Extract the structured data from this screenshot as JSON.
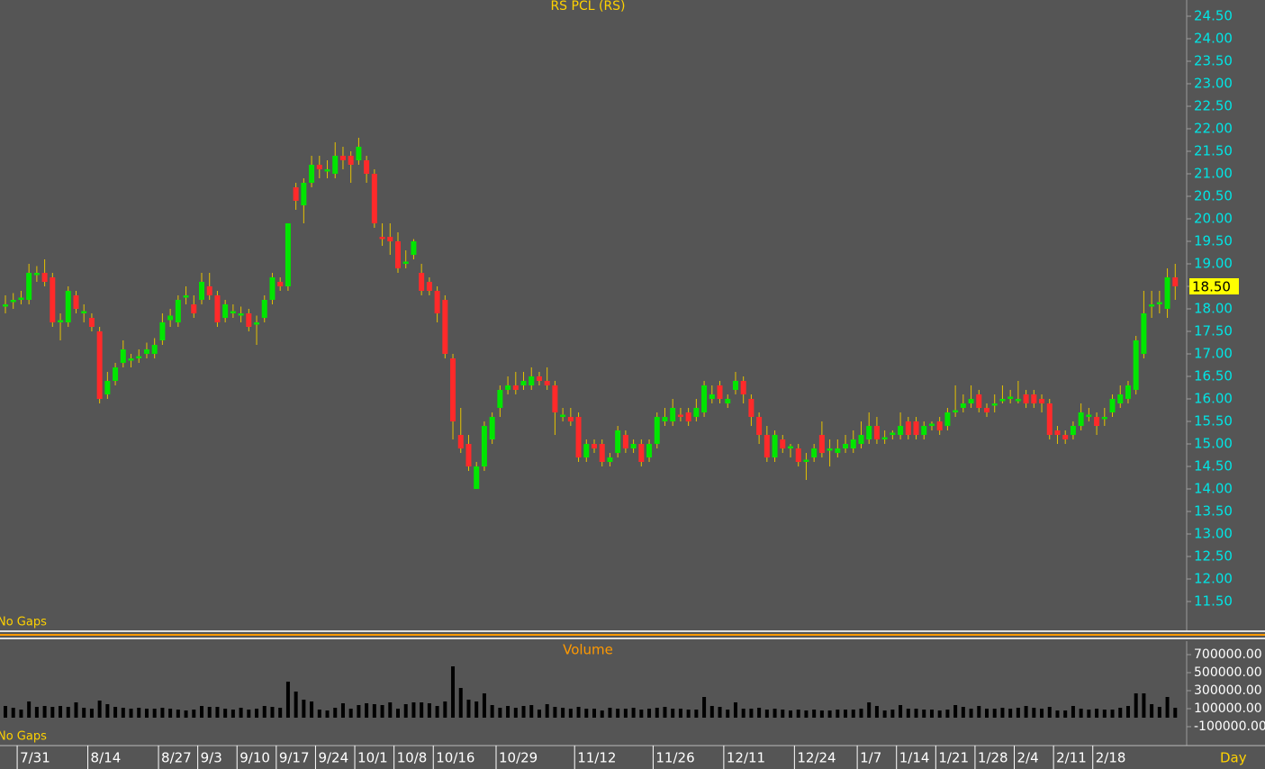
{
  "chart_data": [
    {
      "type": "candlestick",
      "title": "RS PCL (RS)",
      "note": "No Gaps",
      "up_color": "#00e600",
      "down_color": "#ff2a2a",
      "wick_color": "#e6c200",
      "open": [
        18.05,
        18.15,
        18.2,
        18.2,
        18.75,
        18.8,
        18.7,
        17.7,
        17.7,
        18.3,
        17.9,
        17.8,
        17.5,
        16.1,
        16.4,
        16.8,
        16.85,
        16.9,
        17.0,
        17.0,
        17.3,
        17.75,
        17.7,
        18.25,
        18.1,
        18.2,
        18.5,
        18.3,
        17.8,
        17.9,
        17.85,
        17.9,
        17.65,
        17.8,
        18.2,
        18.6,
        18.5,
        20.7,
        20.3,
        20.8,
        21.2,
        21.05,
        21.0,
        21.4,
        21.4,
        21.3,
        21.3,
        21.0,
        19.6,
        19.6,
        19.5,
        19.0,
        19.2,
        18.8,
        18.6,
        18.4,
        18.2,
        16.9,
        15.2,
        15.0,
        14.0,
        14.5,
        15.1,
        15.8,
        16.2,
        16.3,
        16.3,
        16.3,
        16.5,
        16.4,
        16.3,
        15.6,
        15.6,
        15.6,
        14.7,
        15.0,
        15.0,
        14.6,
        14.8,
        15.2,
        14.9,
        15.0,
        14.7,
        15.0,
        15.5,
        15.5,
        15.65,
        15.7,
        15.6,
        15.7,
        16.0,
        16.3,
        15.9,
        16.2,
        16.4,
        16.0,
        15.6,
        15.2,
        14.7,
        15.1,
        14.9,
        14.9,
        14.6,
        14.7,
        15.2,
        14.85,
        14.8,
        14.9,
        14.9,
        15.0,
        15.1,
        15.4,
        15.1,
        15.2,
        15.2,
        15.5,
        15.5,
        15.2,
        15.4,
        15.5,
        15.4,
        15.7,
        15.8,
        15.9,
        16.1,
        15.8,
        15.85,
        15.95,
        16.0,
        15.95,
        16.1,
        16.1,
        16.0,
        15.9,
        15.3,
        15.2,
        15.2,
        15.4,
        15.6,
        15.6,
        15.55,
        15.7,
        15.9,
        16.0,
        16.2,
        17.0,
        18.05,
        18.1,
        18.0,
        18.7
      ],
      "high": [
        18.3,
        18.35,
        18.4,
        19.0,
        18.95,
        19.1,
        18.8,
        17.9,
        18.5,
        18.4,
        18.1,
        17.9,
        17.6,
        16.6,
        16.8,
        17.3,
        17.0,
        17.1,
        17.25,
        17.35,
        17.9,
        18.0,
        18.3,
        18.5,
        18.3,
        18.8,
        18.8,
        18.4,
        18.2,
        18.1,
        18.05,
        18.0,
        17.85,
        18.3,
        18.8,
        18.7,
        19.9,
        20.8,
        20.9,
        21.4,
        21.4,
        21.3,
        21.7,
        21.6,
        21.5,
        21.8,
        21.4,
        21.1,
        19.9,
        19.9,
        19.7,
        19.3,
        19.55,
        19.0,
        18.7,
        18.5,
        18.3,
        17.0,
        15.8,
        15.2,
        14.6,
        15.5,
        15.7,
        16.3,
        16.5,
        16.6,
        16.6,
        16.7,
        16.6,
        16.7,
        16.4,
        15.8,
        15.8,
        15.7,
        15.1,
        15.1,
        15.1,
        14.8,
        15.4,
        15.3,
        15.1,
        15.1,
        15.1,
        15.7,
        15.8,
        16.0,
        15.8,
        15.8,
        16.0,
        16.4,
        16.3,
        16.4,
        16.1,
        16.6,
        16.5,
        16.1,
        15.7,
        15.4,
        15.3,
        15.2,
        15.0,
        15.0,
        14.8,
        15.0,
        15.5,
        15.1,
        15.1,
        15.2,
        15.3,
        15.5,
        15.7,
        15.6,
        15.3,
        15.3,
        15.7,
        15.6,
        15.6,
        15.5,
        15.5,
        15.6,
        15.8,
        16.3,
        16.1,
        16.3,
        16.2,
        15.9,
        16.1,
        16.3,
        16.2,
        16.4,
        16.2,
        16.2,
        16.1,
        16.0,
        15.4,
        15.3,
        15.5,
        15.9,
        15.8,
        15.7,
        15.8,
        16.1,
        16.3,
        16.4,
        17.4,
        18.4,
        18.4,
        18.4,
        18.9,
        19.0
      ],
      "low": [
        17.9,
        18.0,
        18.1,
        18.1,
        18.6,
        18.5,
        17.6,
        17.3,
        17.6,
        17.9,
        17.7,
        17.5,
        15.9,
        16.0,
        16.3,
        16.7,
        16.7,
        16.8,
        16.9,
        16.9,
        17.2,
        17.6,
        17.6,
        18.1,
        17.8,
        18.1,
        18.2,
        17.6,
        17.7,
        17.8,
        17.7,
        17.5,
        17.2,
        17.7,
        18.1,
        18.4,
        18.4,
        20.2,
        19.9,
        20.7,
        20.9,
        20.9,
        20.9,
        21.1,
        20.8,
        21.2,
        20.8,
        19.8,
        19.4,
        19.2,
        18.8,
        18.9,
        19.1,
        18.3,
        18.3,
        17.7,
        16.9,
        15.1,
        14.8,
        14.4,
        14.0,
        14.4,
        15.0,
        15.6,
        16.1,
        16.1,
        16.2,
        16.2,
        16.3,
        16.2,
        15.2,
        15.5,
        15.4,
        14.6,
        14.6,
        14.8,
        14.5,
        14.5,
        14.7,
        14.8,
        14.8,
        14.5,
        14.6,
        14.9,
        15.4,
        15.4,
        15.5,
        15.4,
        15.5,
        15.6,
        15.9,
        15.9,
        15.8,
        16.1,
        15.9,
        15.4,
        15.0,
        14.6,
        14.6,
        14.8,
        14.7,
        14.5,
        14.2,
        14.6,
        14.7,
        14.5,
        14.7,
        14.8,
        14.8,
        14.9,
        15.0,
        15.0,
        15.0,
        15.1,
        15.1,
        15.1,
        15.1,
        15.1,
        15.3,
        15.2,
        15.3,
        15.6,
        15.7,
        15.8,
        15.7,
        15.6,
        15.7,
        15.9,
        15.9,
        15.9,
        15.8,
        15.8,
        15.7,
        15.1,
        15.0,
        15.0,
        15.1,
        15.3,
        15.5,
        15.2,
        15.4,
        15.6,
        15.8,
        15.9,
        16.1,
        16.9,
        17.8,
        17.9,
        17.8,
        18.2
      ],
      "close": [
        18.1,
        18.2,
        18.25,
        18.8,
        18.8,
        18.6,
        17.7,
        17.75,
        18.4,
        18.0,
        17.95,
        17.6,
        16.0,
        16.4,
        16.7,
        17.1,
        16.9,
        16.95,
        17.1,
        17.2,
        17.7,
        17.85,
        18.2,
        18.3,
        17.9,
        18.6,
        18.3,
        17.7,
        18.1,
        17.95,
        17.9,
        17.6,
        17.7,
        18.2,
        18.7,
        18.5,
        19.9,
        20.4,
        20.8,
        21.2,
        21.1,
        21.1,
        21.4,
        21.3,
        21.2,
        21.6,
        21.0,
        19.9,
        19.55,
        19.5,
        18.9,
        19.05,
        19.5,
        18.4,
        18.4,
        17.9,
        17.0,
        15.5,
        14.9,
        14.5,
        14.5,
        15.4,
        15.6,
        16.2,
        16.3,
        16.2,
        16.4,
        16.5,
        16.4,
        16.3,
        15.7,
        15.65,
        15.5,
        14.7,
        15.0,
        14.9,
        14.6,
        14.7,
        15.3,
        14.9,
        15.0,
        14.6,
        15.0,
        15.6,
        15.6,
        15.8,
        15.6,
        15.5,
        15.8,
        16.3,
        16.1,
        16.0,
        16.0,
        16.4,
        16.1,
        15.6,
        15.2,
        14.7,
        15.2,
        14.9,
        14.95,
        14.6,
        14.65,
        14.9,
        14.8,
        14.9,
        14.9,
        15.0,
        15.1,
        15.2,
        15.4,
        15.1,
        15.15,
        15.25,
        15.4,
        15.2,
        15.2,
        15.4,
        15.45,
        15.3,
        15.7,
        15.75,
        15.9,
        16.0,
        15.8,
        15.7,
        15.9,
        16.0,
        16.05,
        16.0,
        15.9,
        15.9,
        15.9,
        15.2,
        15.2,
        15.1,
        15.4,
        15.7,
        15.65,
        15.4,
        15.6,
        16.0,
        16.1,
        16.3,
        17.3,
        17.9,
        18.1,
        18.15,
        18.7,
        18.5
      ],
      "last_price": {
        "value": 18.5,
        "label": "18.50"
      },
      "ylim": [
        10.86,
        24.86
      ],
      "yticks": [
        {
          "value": 11.5,
          "label": "11.50"
        },
        {
          "value": 12,
          "label": "12.00"
        },
        {
          "value": 12.5,
          "label": "12.50"
        },
        {
          "value": 13,
          "label": "13.00"
        },
        {
          "value": 13.5,
          "label": "13.50"
        },
        {
          "value": 14,
          "label": "14.00"
        },
        {
          "value": 14.5,
          "label": "14.50"
        },
        {
          "value": 15,
          "label": "15.00"
        },
        {
          "value": 15.5,
          "label": "15.50"
        },
        {
          "value": 16,
          "label": "16.00"
        },
        {
          "value": 16.5,
          "label": "16.50"
        },
        {
          "value": 17,
          "label": "17.00"
        },
        {
          "value": 17.5,
          "label": "17.50"
        },
        {
          "value": 18,
          "label": "18.00"
        },
        {
          "value": 18.5,
          "label": "18.50"
        },
        {
          "value": 19,
          "label": "19.00"
        },
        {
          "value": 19.5,
          "label": "19.50"
        },
        {
          "value": 20,
          "label": "20.00"
        },
        {
          "value": 20.5,
          "label": "20.50"
        },
        {
          "value": 21,
          "label": "21.00"
        },
        {
          "value": 21.5,
          "label": "21.50"
        },
        {
          "value": 22,
          "label": "22.00"
        },
        {
          "value": 22.5,
          "label": "22.50"
        },
        {
          "value": 23,
          "label": "23.00"
        },
        {
          "value": 23.5,
          "label": "23.50"
        },
        {
          "value": 24,
          "label": "24.00"
        },
        {
          "value": 24.5,
          "label": "24.50"
        }
      ]
    },
    {
      "type": "bar",
      "title": "Volume",
      "note": "No Gaps",
      "xlabel": "Day",
      "color": "#000000",
      "categories": [
        null,
        null,
        "7/31",
        null,
        null,
        null,
        null,
        null,
        null,
        null,
        null,
        "8/14",
        null,
        null,
        null,
        null,
        null,
        null,
        null,
        null,
        "8/27",
        null,
        null,
        null,
        null,
        "9/3",
        null,
        null,
        null,
        null,
        "9/10",
        null,
        null,
        null,
        null,
        "9/17",
        null,
        null,
        null,
        null,
        "9/24",
        null,
        null,
        null,
        null,
        "10/1",
        null,
        null,
        null,
        null,
        "10/8",
        null,
        null,
        null,
        null,
        "10/16",
        null,
        null,
        null,
        null,
        null,
        null,
        null,
        "10/29",
        null,
        null,
        null,
        null,
        null,
        null,
        null,
        null,
        null,
        "11/12",
        null,
        null,
        null,
        null,
        null,
        null,
        null,
        null,
        null,
        "11/26",
        null,
        null,
        null,
        null,
        null,
        null,
        null,
        null,
        "12/11",
        null,
        null,
        null,
        null,
        null,
        null,
        null,
        null,
        "12/24",
        null,
        null,
        null,
        null,
        null,
        null,
        null,
        "1/7",
        null,
        null,
        null,
        null,
        "1/14",
        null,
        null,
        null,
        null,
        "1/21",
        null,
        null,
        null,
        null,
        "1/28",
        null,
        null,
        null,
        null,
        "2/4",
        null,
        null,
        null,
        null,
        "2/11",
        null,
        null,
        null,
        null,
        "2/18",
        null,
        null,
        null,
        null,
        null,
        null,
        null,
        null,
        null,
        null
      ],
      "values": [
        130000,
        110000,
        90000,
        180000,
        120000,
        130000,
        120000,
        130000,
        120000,
        170000,
        110000,
        100000,
        190000,
        150000,
        120000,
        110000,
        100000,
        110000,
        100000,
        100000,
        110000,
        100000,
        90000,
        80000,
        90000,
        130000,
        120000,
        120000,
        100000,
        90000,
        110000,
        90000,
        100000,
        130000,
        120000,
        110000,
        400000,
        290000,
        200000,
        180000,
        90000,
        80000,
        110000,
        160000,
        100000,
        140000,
        160000,
        150000,
        140000,
        170000,
        100000,
        150000,
        170000,
        170000,
        160000,
        130000,
        180000,
        570000,
        330000,
        200000,
        180000,
        270000,
        140000,
        110000,
        130000,
        110000,
        130000,
        140000,
        90000,
        150000,
        120000,
        110000,
        100000,
        120000,
        100000,
        100000,
        80000,
        110000,
        100000,
        100000,
        110000,
        90000,
        100000,
        110000,
        120000,
        100000,
        100000,
        90000,
        90000,
        230000,
        130000,
        120000,
        90000,
        170000,
        100000,
        100000,
        110000,
        90000,
        100000,
        90000,
        80000,
        90000,
        80000,
        90000,
        80000,
        80000,
        90000,
        90000,
        90000,
        100000,
        170000,
        130000,
        80000,
        90000,
        140000,
        100000,
        100000,
        90000,
        90000,
        80000,
        90000,
        140000,
        120000,
        100000,
        130000,
        100000,
        100000,
        110000,
        100000,
        110000,
        130000,
        110000,
        100000,
        120000,
        80000,
        80000,
        130000,
        100000,
        90000,
        100000,
        90000,
        90000,
        110000,
        130000,
        270000,
        270000,
        150000,
        120000,
        230000,
        110000
      ],
      "ylim": [
        -310000,
        850000
      ],
      "yticks": [
        {
          "value": 700000,
          "label": "700000.00"
        },
        {
          "value": 500000,
          "label": "500000.00"
        },
        {
          "value": 300000,
          "label": "300000.00"
        },
        {
          "value": 100000,
          "label": "100000.00"
        },
        {
          "value": -100000,
          "label": "-100000.00"
        }
      ]
    }
  ]
}
